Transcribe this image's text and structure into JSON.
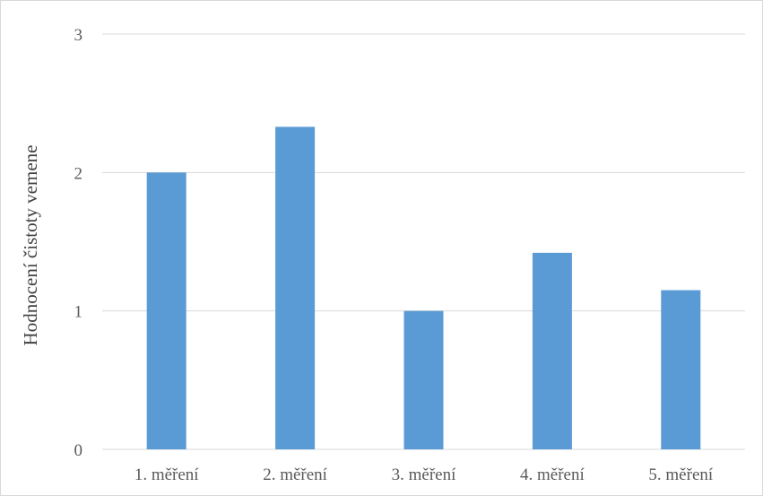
{
  "chart_data": {
    "type": "bar",
    "title": "",
    "xlabel": "",
    "ylabel": "Hodnocení čistoty vemene",
    "categories": [
      "1. měření",
      "2. měření",
      "3. měření",
      "4. měření",
      "5. měření"
    ],
    "values": [
      2.0,
      2.33,
      1.0,
      1.42,
      1.15
    ],
    "ylim": [
      0,
      3
    ],
    "yticks": [
      "0",
      "1",
      "2",
      "3"
    ],
    "grid": true,
    "legend": "none",
    "bar_color": "#5b9bd5",
    "grid_color": "#d9d9d9"
  }
}
